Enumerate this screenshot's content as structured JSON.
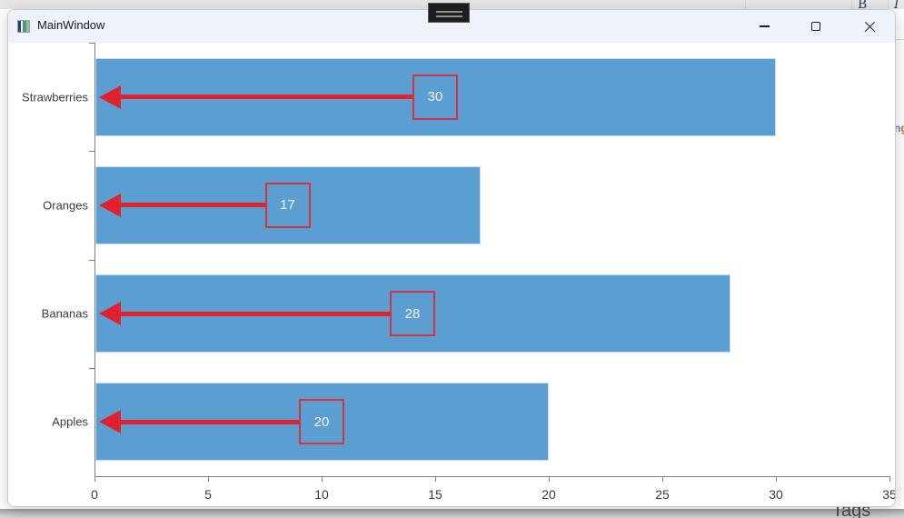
{
  "desktop": {
    "top_strip": {
      "bold_glyph": "B",
      "italic_glyph": "I"
    },
    "partial_text": {
      "first": "n",
      "second": "g"
    },
    "tags_label": "Tags"
  },
  "window": {
    "title": "MainWindow",
    "controls": [
      "minimize",
      "maximize",
      "close"
    ]
  },
  "chart_data": {
    "type": "bar",
    "orientation": "horizontal",
    "title": "",
    "categories": [
      "Strawberries",
      "Oranges",
      "Bananas",
      "Apples"
    ],
    "values": [
      30,
      17,
      28,
      20
    ],
    "value_labels": [
      "30",
      "17",
      "28",
      "20"
    ],
    "xlim": [
      0,
      35
    ],
    "xticks": [
      0,
      5,
      10,
      15,
      20,
      25,
      30,
      35
    ],
    "grid": false,
    "legend": null,
    "bar_color": "#5B9FD2",
    "bar_edge_color": "#C6DEF1",
    "annotation": {
      "style": "boxed value label at bar midpoint",
      "arrow": "red arrow from box pointing left to y-axis",
      "color": "#E0212E",
      "box_border_color": "#D8323E",
      "text_color": "#F2F5F8"
    },
    "axis_color": "#7E7E7E",
    "label_color": "#3A3A3A"
  }
}
